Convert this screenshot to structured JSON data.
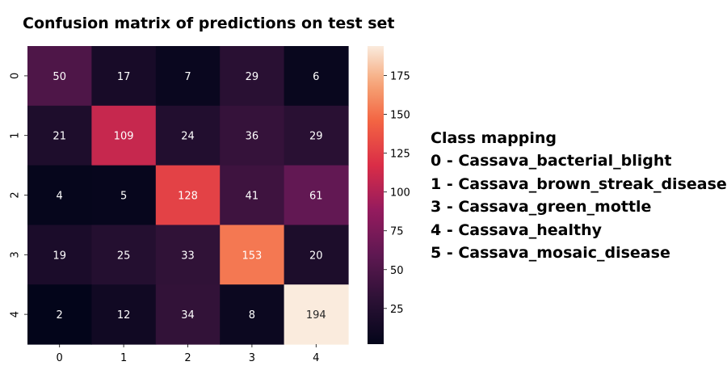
{
  "chart_data": {
    "type": "heatmap",
    "title": "Confusion matrix of predictions on test set",
    "x_categories": [
      "0",
      "1",
      "2",
      "3",
      "4"
    ],
    "y_categories": [
      "0",
      "1",
      "2",
      "3",
      "4"
    ],
    "values": [
      [
        50,
        17,
        7,
        29,
        6
      ],
      [
        21,
        109,
        24,
        36,
        29
      ],
      [
        4,
        5,
        128,
        41,
        61
      ],
      [
        19,
        25,
        33,
        153,
        20
      ],
      [
        2,
        12,
        34,
        8,
        194
      ]
    ],
    "colorbar": {
      "colormap": "rocket",
      "vmin": 2,
      "vmax": 194,
      "ticks": [
        25,
        50,
        75,
        100,
        125,
        150,
        175
      ]
    },
    "annotations": true
  },
  "mapping": {
    "heading": "Class mapping",
    "items": [
      "0 - Cassava_bacterial_blight",
      "1 - Cassava_brown_streak_disease",
      "3 - Cassava_green_mottle",
      "4 - Cassava_healthy",
      "5 - Cassava_mosaic_disease"
    ]
  }
}
